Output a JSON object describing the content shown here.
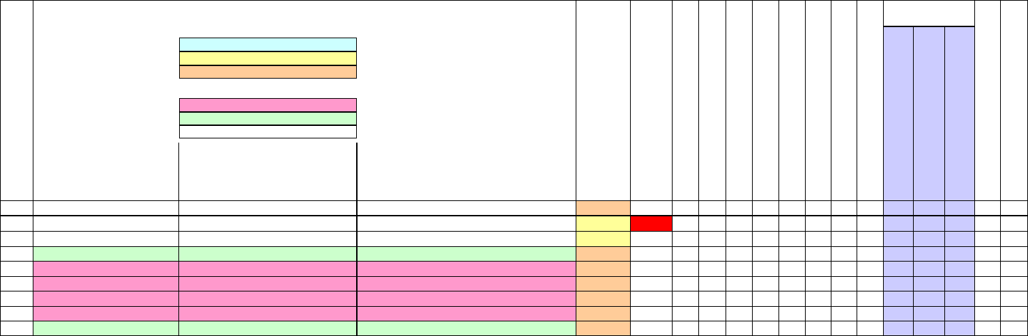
{
  "sheet": {
    "legend_colors": [
      "#ccffff",
      "#ffff99",
      "#ffcc99",
      "#ff99cc",
      "#ccffcc",
      "#ffffff"
    ],
    "fill_colors": {
      "orange": "#ffcc99",
      "yellow": "#ffff99",
      "pink": "#ff99cc",
      "green": "#ccffcc",
      "red": "#ff0000",
      "lavender": "#ccccff"
    },
    "row_fills": [
      "",
      "",
      "",
      "green",
      "pink",
      "pink",
      "pink",
      "pink",
      "green"
    ],
    "col_i_fills": [
      "orange",
      "yellow",
      "yellow",
      "orange",
      "orange",
      "orange",
      "orange",
      "orange",
      "orange"
    ],
    "flag_row": 1
  }
}
